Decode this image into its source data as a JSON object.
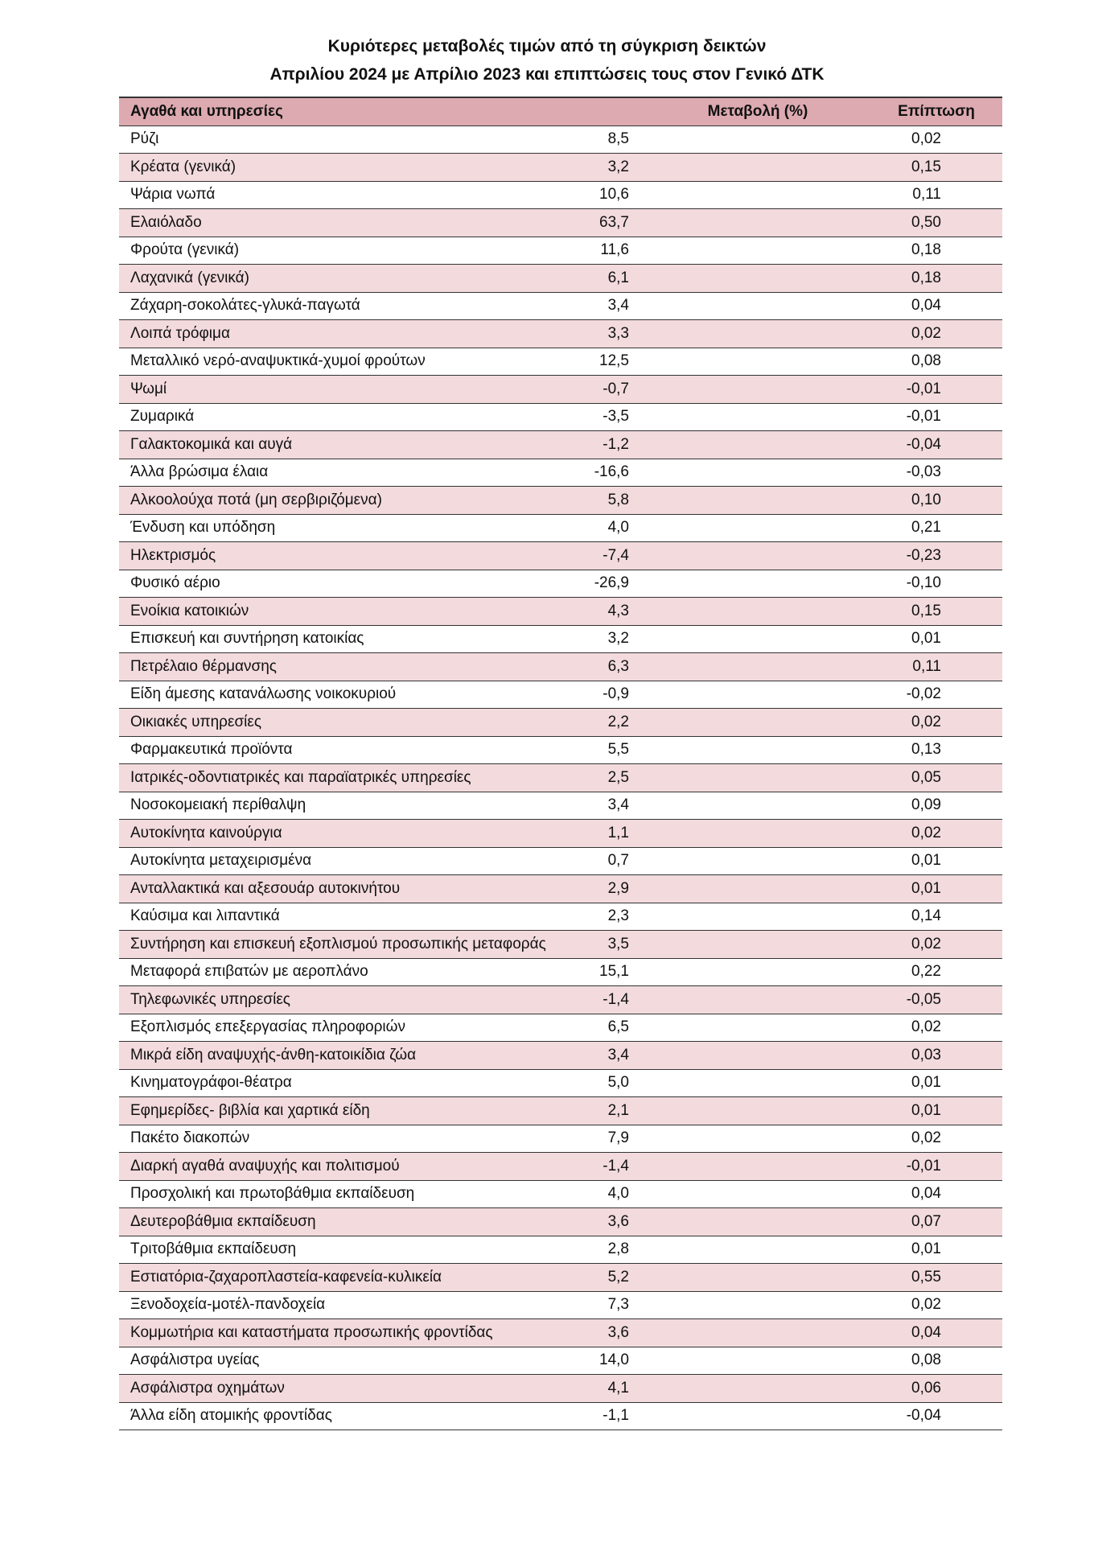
{
  "header": {
    "title_lines": [
      "Κυριότερες μεταβολές τιμών από τη σύγκριση δεικτών",
      "Απριλίου 2024 με Απρίλιο 2023 και επιπτώσεις τους στον Γενικό ΔΤΚ"
    ]
  },
  "table": {
    "columns": [
      "Αγαθά και υπηρεσίες",
      "Μεταβολή (%)",
      "Επίπτωση"
    ],
    "rows": [
      [
        "Ρύζι",
        "8,5",
        "0,02"
      ],
      [
        "Κρέατα (γενικά)",
        "3,2",
        "0,15"
      ],
      [
        "Ψάρια νωπά",
        "10,6",
        "0,11"
      ],
      [
        "Ελαιόλαδο",
        "63,7",
        "0,50"
      ],
      [
        "Φρούτα (γενικά)",
        "11,6",
        "0,18"
      ],
      [
        "Λαχανικά (γενικά)",
        "6,1",
        "0,18"
      ],
      [
        "Ζάχαρη-σοκολάτες-γλυκά-παγωτά",
        "3,4",
        "0,04"
      ],
      [
        "Λοιπά τρόφιμα",
        "3,3",
        "0,02"
      ],
      [
        "Μεταλλικό νερό-αναψυκτικά-χυμοί φρούτων",
        "12,5",
        "0,08"
      ],
      [
        "Ψωμί",
        "-0,7",
        "-0,01"
      ],
      [
        "Ζυμαρικά",
        "-3,5",
        "-0,01"
      ],
      [
        "Γαλακτοκομικά και αυγά",
        "-1,2",
        "-0,04"
      ],
      [
        "Άλλα βρώσιμα έλαια",
        "-16,6",
        "-0,03"
      ],
      [
        "Αλκοολούχα ποτά (μη σερβιριζόμενα)",
        "5,8",
        "0,10"
      ],
      [
        "Ένδυση και υπόδηση",
        "4,0",
        "0,21"
      ],
      [
        "Ηλεκτρισμός",
        "-7,4",
        "-0,23"
      ],
      [
        "Φυσικό αέριο",
        "-26,9",
        "-0,10"
      ],
      [
        "Ενοίκια κατοικιών",
        "4,3",
        "0,15"
      ],
      [
        "Επισκευή και συντήρηση κατοικίας",
        "3,2",
        "0,01"
      ],
      [
        "Πετρέλαιο θέρμανσης",
        "6,3",
        "0,11"
      ],
      [
        "Είδη άμεσης κατανάλωσης νοικοκυριού",
        "-0,9",
        "-0,02"
      ],
      [
        "Οικιακές υπηρεσίες",
        "2,2",
        "0,02"
      ],
      [
        "Φαρμακευτικά προϊόντα",
        "5,5",
        "0,13"
      ],
      [
        "Ιατρικές-οδοντιατρικές και παραϊατρικές υπηρεσίες",
        "2,5",
        "0,05"
      ],
      [
        "Νοσοκομειακή περίθαλψη",
        "3,4",
        "0,09"
      ],
      [
        "Αυτοκίνητα καινούργια",
        "1,1",
        "0,02"
      ],
      [
        "Αυτοκίνητα μεταχειρισμένα",
        "0,7",
        "0,01"
      ],
      [
        "Ανταλλακτικά και αξεσουάρ αυτοκινήτου",
        "2,9",
        "0,01"
      ],
      [
        "Καύσιμα και λιπαντικά",
        "2,3",
        "0,14"
      ],
      [
        "Συντήρηση και επισκευή εξοπλισμού προσωπικής μεταφοράς",
        "3,5",
        "0,02"
      ],
      [
        "Μεταφορά επιβατών με αεροπλάνο",
        "15,1",
        "0,22"
      ],
      [
        "Τηλεφωνικές υπηρεσίες",
        "-1,4",
        "-0,05"
      ],
      [
        "Εξοπλισμός επεξεργασίας πληροφοριών",
        "6,5",
        "0,02"
      ],
      [
        "Μικρά είδη αναψυχής-άνθη-κατοικίδια ζώα",
        "3,4",
        "0,03"
      ],
      [
        "Κινηματογράφοι-θέατρα",
        "5,0",
        "0,01"
      ],
      [
        "Εφημερίδες- βιβλία και χαρτικά είδη",
        "2,1",
        "0,01"
      ],
      [
        "Πακέτο διακοπών",
        "7,9",
        "0,02"
      ],
      [
        "Διαρκή αγαθά αναψυχής και πολιτισμού",
        "-1,4",
        "-0,01"
      ],
      [
        "Προσχολική και πρωτοβάθμια εκπαίδευση",
        "4,0",
        "0,04"
      ],
      [
        "Δευτεροβάθμια εκπαίδευση",
        "3,6",
        "0,07"
      ],
      [
        "Τριτοβάθμια εκπαίδευση",
        "2,8",
        "0,01"
      ],
      [
        "Εστιατόρια-ζαχαροπλαστεία-καφενεία-κυλικεία",
        "5,2",
        "0,55"
      ],
      [
        "Ξενοδοχεία-μοτέλ-πανδοχεία",
        "7,3",
        "0,02"
      ],
      [
        "Κομμωτήρια και καταστήματα προσωπικής φροντίδας",
        "3,6",
        "0,04"
      ],
      [
        "Ασφάλιστρα υγείας",
        "14,0",
        "0,08"
      ],
      [
        "Ασφάλιστρα οχημάτων",
        "4,1",
        "0,06"
      ],
      [
        "Άλλα είδη ατομικής φροντίδας",
        "-1,1",
        "-0,04"
      ]
    ]
  }
}
